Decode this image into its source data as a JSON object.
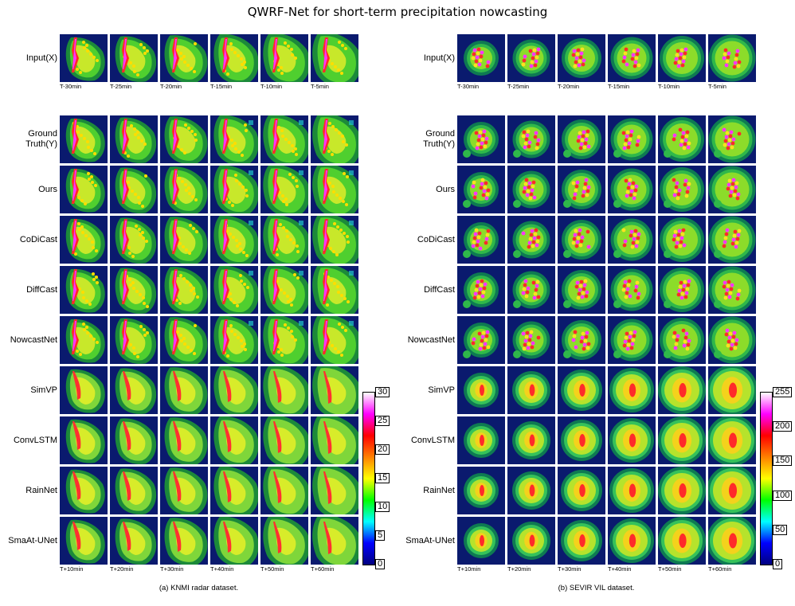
{
  "title": "QWRF-Net for short-term precipitation nowcasting",
  "row_labels": {
    "input": "Input(X)",
    "ground_truth": "Ground\nTruth(Y)",
    "ours": "Ours",
    "codicast": "CoDiCast",
    "diffcast": "DiffCast",
    "nowcastnet": "NowcastNet",
    "simvp": "SimVP",
    "convlstm": "ConvLSTM",
    "rainnet": "RainNet",
    "smaat": "SmaAt-UNet"
  },
  "input_ticks": [
    "T-30min",
    "T-25min",
    "T-20min",
    "T-15min",
    "T-10min",
    "T-5min"
  ],
  "output_ticks": [
    "T+10min",
    "T+20min",
    "T+30min",
    "T+40min",
    "T+50min",
    "T+60min"
  ],
  "panels": [
    {
      "caption": "(a) KNMI radar dataset.",
      "colorbar_ticks": [
        "30",
        "25",
        "20",
        "15",
        "10",
        "5",
        "0"
      ]
    },
    {
      "caption": "(b) SEVIR VIL dataset.",
      "colorbar_ticks": [
        "255",
        "200",
        "150",
        "100",
        "50",
        "0"
      ]
    }
  ],
  "colors": {
    "background": "#0a1a6e",
    "colormap": [
      "#000080",
      "#0000ff",
      "#00ffff",
      "#00ff00",
      "#ffff00",
      "#ff8000",
      "#ff0000",
      "#ff00ff",
      "#ffffff"
    ]
  }
}
